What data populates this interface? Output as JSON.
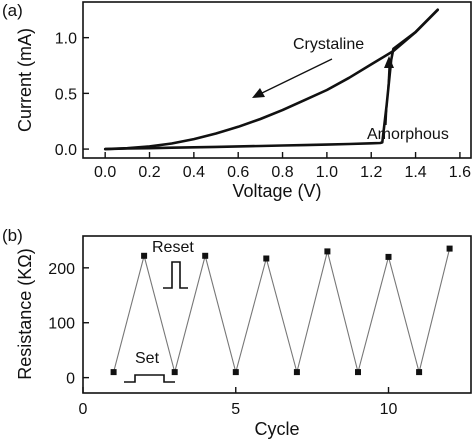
{
  "chart_data": [
    {
      "panel_label": "(a)",
      "type": "line",
      "xlabel": "Voltage (V)",
      "ylabel": "Current (mA)",
      "xlim": [
        -0.1,
        1.65
      ],
      "ylim": [
        -0.08,
        1.32
      ],
      "x_ticks": [
        0.0,
        0.2,
        0.4,
        0.6,
        0.8,
        1.0,
        1.2,
        1.4,
        1.6
      ],
      "y_ticks": [
        0.0,
        0.5,
        1.0
      ],
      "x_tick_labels": [
        "0.0",
        "0.2",
        "0.4",
        "0.6",
        "0.8",
        "1.0",
        "1.2",
        "1.4",
        "1.6"
      ],
      "y_tick_labels": [
        "0.0",
        "0.5",
        "1.0"
      ],
      "series": [
        {
          "x": [
            0.0,
            0.1,
            0.2,
            0.3,
            0.4,
            0.5,
            0.6,
            0.7,
            0.8,
            0.9,
            1.0,
            1.1,
            1.2,
            1.24,
            1.25,
            1.27,
            1.29,
            1.3,
            1.4,
            1.5
          ],
          "y": [
            0.0,
            0.005,
            0.008,
            0.012,
            0.016,
            0.02,
            0.024,
            0.028,
            0.032,
            0.036,
            0.04,
            0.046,
            0.052,
            0.055,
            0.06,
            0.4,
            0.8,
            0.9,
            1.05,
            1.25
          ]
        },
        {
          "x": [
            1.5,
            1.4,
            1.3,
            1.2,
            1.1,
            1.0,
            0.9,
            0.8,
            0.7,
            0.6,
            0.5,
            0.4,
            0.3,
            0.2,
            0.1,
            0.0
          ],
          "y": [
            1.25,
            1.05,
            0.88,
            0.76,
            0.64,
            0.53,
            0.44,
            0.35,
            0.27,
            0.2,
            0.14,
            0.09,
            0.05,
            0.024,
            0.008,
            0.0
          ]
        }
      ],
      "annotations": [
        "Crystaline",
        "Amorphous"
      ]
    },
    {
      "panel_label": "(b)",
      "type": "line",
      "xlabel": "Cycle",
      "ylabel": "Resistance (KΩ)",
      "xlim": [
        0,
        12.7
      ],
      "ylim": [
        -28,
        258
      ],
      "x_ticks": [
        0,
        5,
        10
      ],
      "y_ticks": [
        0,
        100,
        200
      ],
      "x_tick_labels": [
        "0",
        "5",
        "10"
      ],
      "y_tick_labels": [
        "0",
        "100",
        "200"
      ],
      "series": [
        {
          "x": [
            1,
            2,
            3,
            4,
            5,
            6,
            7,
            8,
            9,
            10,
            11,
            12
          ],
          "y": [
            10,
            222,
            10,
            222,
            10,
            217,
            10,
            230,
            10,
            220,
            10,
            235
          ]
        }
      ],
      "annotations": [
        "Reset",
        "Set"
      ]
    }
  ]
}
